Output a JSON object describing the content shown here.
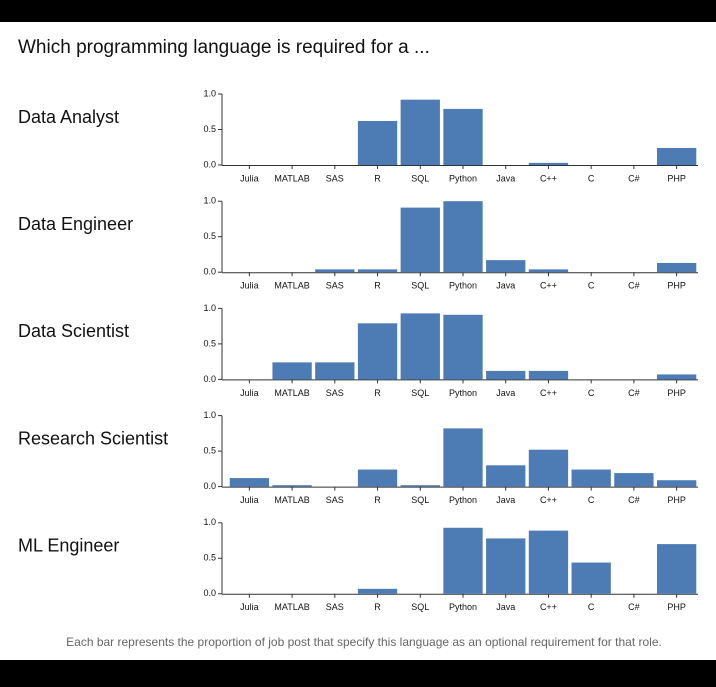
{
  "title": "Which programming language is required for a ...",
  "footnote": "Each bar represents the proportion of job post that specify this language as an optional requirement for that role.",
  "chart_data": [
    {
      "type": "bar",
      "title": "Data Analyst",
      "color": "#4d7cb5",
      "categories": [
        "Julia",
        "MATLAB",
        "SAS",
        "R",
        "SQL",
        "Python",
        "Java",
        "C++",
        "C",
        "C#",
        "PHP"
      ],
      "values": [
        0,
        0,
        0,
        0.62,
        0.92,
        0.79,
        0,
        0.03,
        0,
        0,
        0.24
      ],
      "ylim": [
        0,
        1
      ],
      "yticks": [
        {
          "value": 0,
          "label": "0.0"
        },
        {
          "value": 0.5,
          "label": "0.5"
        },
        {
          "value": 1,
          "label": "1.0"
        }
      ]
    },
    {
      "type": "bar",
      "title": "Data Engineer",
      "color": "#4d7cb5",
      "categories": [
        "Julia",
        "MATLAB",
        "SAS",
        "R",
        "SQL",
        "Python",
        "Java",
        "C++",
        "C",
        "C#",
        "PHP"
      ],
      "values": [
        0,
        0,
        0.04,
        0.04,
        0.91,
        1.0,
        0.17,
        0.04,
        0,
        0,
        0.13
      ],
      "ylim": [
        0,
        1
      ],
      "yticks": [
        {
          "value": 0,
          "label": "0.0"
        },
        {
          "value": 0.5,
          "label": "0.5"
        },
        {
          "value": 1,
          "label": "1.0"
        }
      ]
    },
    {
      "type": "bar",
      "title": "Data Scientist",
      "color": "#4d7cb5",
      "categories": [
        "Julia",
        "MATLAB",
        "SAS",
        "R",
        "SQL",
        "Python",
        "Java",
        "C++",
        "C",
        "C#",
        "PHP"
      ],
      "values": [
        0,
        0.24,
        0.24,
        0.79,
        0.93,
        0.91,
        0.12,
        0.12,
        0,
        0,
        0.07
      ],
      "ylim": [
        0,
        1
      ],
      "yticks": [
        {
          "value": 0,
          "label": "0.0"
        },
        {
          "value": 0.5,
          "label": "0.5"
        },
        {
          "value": 1,
          "label": "1.0"
        }
      ]
    },
    {
      "type": "bar",
      "title": "Research Scientist",
      "color": "#4d7cb5",
      "categories": [
        "Julia",
        "MATLAB",
        "SAS",
        "R",
        "SQL",
        "Python",
        "Java",
        "C++",
        "C",
        "C#",
        "PHP"
      ],
      "values": [
        0.12,
        0.02,
        0,
        0.24,
        0.02,
        0.82,
        0.3,
        0.52,
        0.24,
        0.19,
        0.09
      ],
      "ylim": [
        0,
        1
      ],
      "yticks": [
        {
          "value": 0,
          "label": "0.0"
        },
        {
          "value": 0.5,
          "label": "0.5"
        },
        {
          "value": 1,
          "label": "1.0"
        }
      ]
    },
    {
      "type": "bar",
      "title": "ML Engineer",
      "color": "#4d7cb5",
      "categories": [
        "Julia",
        "MATLAB",
        "SAS",
        "R",
        "SQL",
        "Python",
        "Java",
        "C++",
        "C",
        "C#",
        "PHP"
      ],
      "values": [
        0,
        0,
        0,
        0.07,
        0,
        0.93,
        0.78,
        0.89,
        0.44,
        0,
        0.7
      ],
      "ylim": [
        0,
        1
      ],
      "yticks": [
        {
          "value": 0,
          "label": "0.0"
        },
        {
          "value": 0.5,
          "label": "0.5"
        },
        {
          "value": 1,
          "label": "1.0"
        }
      ]
    }
  ]
}
